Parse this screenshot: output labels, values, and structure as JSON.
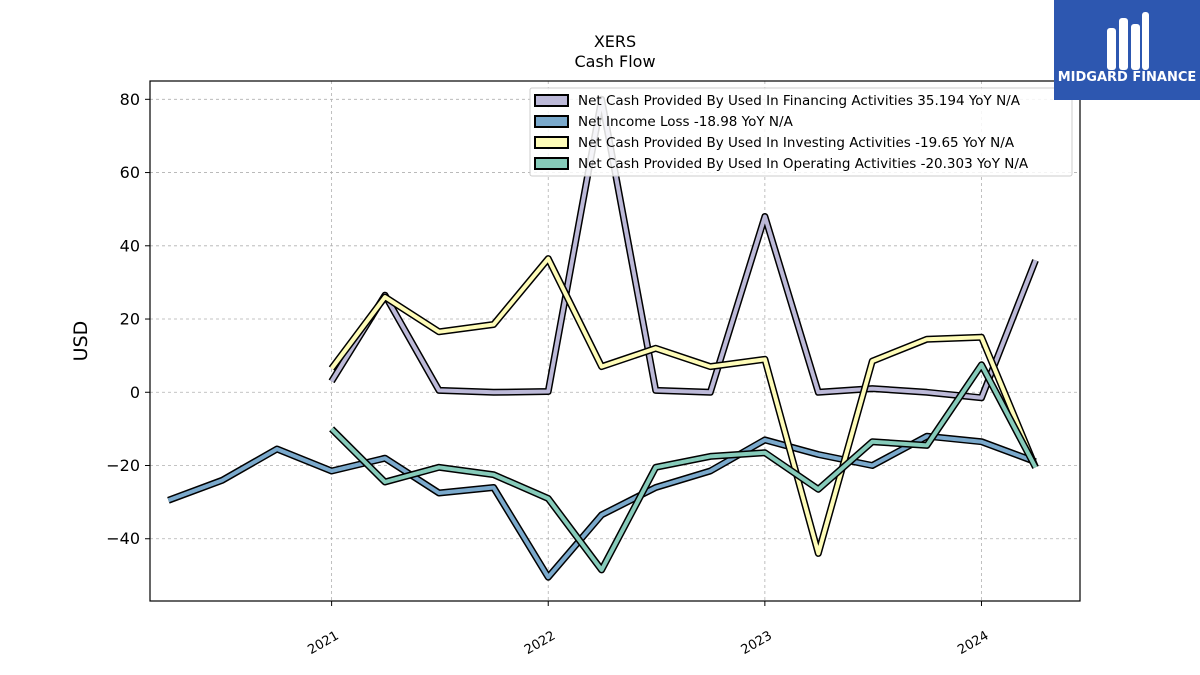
{
  "chart_data": {
    "type": "line",
    "title": "XERS",
    "subtitle": "Cash Flow",
    "ylabel": "USD",
    "xlabel": "",
    "xlim": [
      "2020-03-01",
      "2024-06-15"
    ],
    "ylim": [
      -57,
      85
    ],
    "yticks": [
      -40,
      -20,
      0,
      20,
      40,
      60,
      80
    ],
    "xticks": [
      {
        "label": "2021",
        "date": "2021-01-01"
      },
      {
        "label": "2022",
        "date": "2022-01-01"
      },
      {
        "label": "2023",
        "date": "2023-01-01"
      },
      {
        "label": "2024",
        "date": "2024-01-01"
      }
    ],
    "grid": true,
    "legend_position": "top-right",
    "series": [
      {
        "name": "Net Cash Provided By Used In Financing Activities  35.194 YoY N/A",
        "color": "#bcb9d8",
        "points": [
          [
            "2021-01-01",
            3
          ],
          [
            "2021-04-01",
            26.5
          ],
          [
            "2021-07-01",
            0.5
          ],
          [
            "2021-10-01",
            0
          ],
          [
            "2022-01-01",
            0.2
          ],
          [
            "2022-04-01",
            80
          ],
          [
            "2022-07-01",
            0.5
          ],
          [
            "2022-10-01",
            0
          ],
          [
            "2023-01-01",
            48
          ],
          [
            "2023-04-01",
            0
          ],
          [
            "2023-07-01",
            1
          ],
          [
            "2023-10-01",
            0
          ],
          [
            "2024-01-01",
            -1.5
          ],
          [
            "2024-04-01",
            36
          ]
        ]
      },
      {
        "name": "Net Income Loss  -18.98 YoY N/A",
        "color": "#7aa9cc",
        "points": [
          [
            "2020-04-01",
            -29.5
          ],
          [
            "2020-07-01",
            -24
          ],
          [
            "2020-10-01",
            -15.5
          ],
          [
            "2021-01-01",
            -21.5
          ],
          [
            "2021-04-01",
            -18
          ],
          [
            "2021-07-01",
            -27.5
          ],
          [
            "2021-10-01",
            -26
          ],
          [
            "2022-01-01",
            -50.5
          ],
          [
            "2022-04-01",
            -33.5
          ],
          [
            "2022-07-01",
            -26
          ],
          [
            "2022-10-01",
            -21.5
          ],
          [
            "2023-01-01",
            -13
          ],
          [
            "2023-04-01",
            -17
          ],
          [
            "2023-07-01",
            -20
          ],
          [
            "2023-10-01",
            -12
          ],
          [
            "2024-01-01",
            -13.5
          ],
          [
            "2024-04-01",
            -19
          ]
        ]
      },
      {
        "name": "Net Cash Provided By Used In Investing Activities  -19.65 YoY N/A",
        "color": "#fefcb8",
        "points": [
          [
            "2021-01-01",
            6.5
          ],
          [
            "2021-04-01",
            26
          ],
          [
            "2021-07-01",
            16.5
          ],
          [
            "2021-10-01",
            18.5
          ],
          [
            "2022-01-01",
            36.5
          ],
          [
            "2022-04-01",
            7
          ],
          [
            "2022-07-01",
            12
          ],
          [
            "2022-10-01",
            7
          ],
          [
            "2023-01-01",
            9
          ],
          [
            "2023-04-01",
            -44
          ],
          [
            "2023-07-01",
            8.5
          ],
          [
            "2023-10-01",
            14.5
          ],
          [
            "2024-01-01",
            15
          ],
          [
            "2024-04-01",
            -20.5
          ]
        ]
      },
      {
        "name": "Net Cash Provided By Used In Operating Activities  -20.303 YoY N/A",
        "color": "#86cbba",
        "points": [
          [
            "2021-01-01",
            -10
          ],
          [
            "2021-04-01",
            -24.5
          ],
          [
            "2021-07-01",
            -20.5
          ],
          [
            "2021-10-01",
            -22.5
          ],
          [
            "2022-01-01",
            -29
          ],
          [
            "2022-04-01",
            -48.5
          ],
          [
            "2022-07-01",
            -20.5
          ],
          [
            "2022-10-01",
            -17.5
          ],
          [
            "2023-01-01",
            -16.5
          ],
          [
            "2023-04-01",
            -26.5
          ],
          [
            "2023-07-01",
            -13.5
          ],
          [
            "2023-10-01",
            -14.5
          ],
          [
            "2024-01-01",
            7.5
          ],
          [
            "2024-04-01",
            -20.5
          ]
        ]
      }
    ]
  },
  "logo": {
    "text": "MIDGARD FINANCE",
    "background": "#2d57b0",
    "icon": "midgard-m-logo-icon"
  }
}
